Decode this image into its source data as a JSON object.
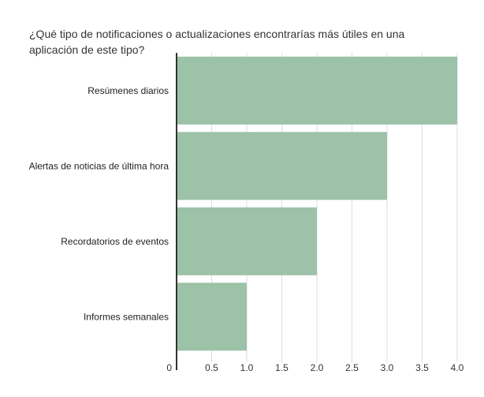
{
  "chart_data": {
    "type": "bar",
    "orientation": "horizontal",
    "title": "¿Qué tipo de notificaciones o actualizaciones encontrarías más útiles en una aplicación de este tipo?",
    "categories": [
      "Resúmenes diarios",
      "Alertas de noticias de última hora",
      "Recordatorios de eventos",
      "Informes semanales"
    ],
    "values": [
      4,
      3,
      2,
      1
    ],
    "xlim": [
      0,
      4
    ],
    "xticks": [
      0,
      0.5,
      1.0,
      1.5,
      2.0,
      2.5,
      3.0,
      3.5,
      4.0
    ],
    "xtick_labels": [
      "0",
      "0.5",
      "1.0",
      "1.5",
      "2.0",
      "2.5",
      "3.0",
      "3.5",
      "4.0"
    ],
    "xlabel": "",
    "ylabel": "",
    "grid": "vertical",
    "legend": "none",
    "bar_color": "#9cc2a7",
    "grid_color": "#dddddd",
    "axis_color": "#333333"
  }
}
